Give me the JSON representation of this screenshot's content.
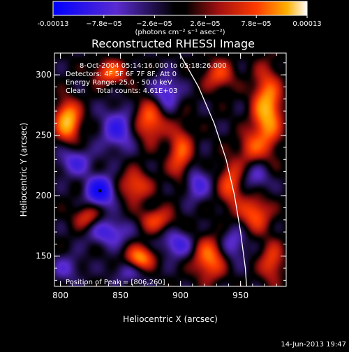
{
  "chart_data": {
    "type": "heatmap",
    "title": "Reconstructed RHESSI Image",
    "xlabel": "Heliocentric X (arcsec)",
    "ylabel": "Heliocentric Y (arcsec)",
    "xlim": [
      795,
      988
    ],
    "ylim": [
      125,
      318
    ],
    "xticks": [
      800,
      850,
      900,
      950
    ],
    "yticks": [
      150,
      200,
      250,
      300
    ],
    "colorbar": {
      "min": -0.00013,
      "max": 0.00013,
      "tick_labels": [
        "-0.00013",
        "−7.8e−05",
        "−2.6e−05",
        "2.6e−05",
        "7.8e−05",
        "0.00013"
      ],
      "units": "(photons cm⁻² s⁻¹ asec⁻²)",
      "colors": [
        "#1a1aff",
        "#6a2fd4",
        "#000000",
        "#7a1010",
        "#ff2a00",
        "#ffa000",
        "#ffffff"
      ]
    },
    "annotations": {
      "time_range": "8-Oct-2004 05:14:16.000 to 05:18:26.000",
      "detectors": "Detectors: 4F 5F 6F 7F 8F, Att 0",
      "energy": "Energy Range: 25.0 - 50.0 keV",
      "clean": "Clean     Total counts: 4.61E+03",
      "peak": "Position of Peak = [806,260]"
    },
    "peak_position": [
      806,
      260
    ],
    "limb_curve": [
      [
        899,
        318
      ],
      [
        915,
        290
      ],
      [
        928,
        260
      ],
      [
        938,
        230
      ],
      [
        945,
        200
      ],
      [
        950,
        170
      ],
      [
        954,
        140
      ],
      [
        955,
        125
      ]
    ],
    "sources": [
      {
        "x": 806,
        "y": 262,
        "sx": 7,
        "sy": 11,
        "a": 1.0
      },
      {
        "x": 972,
        "y": 270,
        "sx": 8,
        "sy": 22,
        "a": 0.95
      },
      {
        "x": 866,
        "y": 148,
        "sx": 8,
        "sy": 7,
        "a": 0.85
      },
      {
        "x": 924,
        "y": 148,
        "sx": 9,
        "sy": 12,
        "a": 0.7
      },
      {
        "x": 874,
        "y": 262,
        "sx": 9,
        "sy": 12,
        "a": 0.65
      },
      {
        "x": 842,
        "y": 302,
        "sx": 10,
        "sy": 7,
        "a": 0.6
      },
      {
        "x": 900,
        "y": 235,
        "sx": 7,
        "sy": 16,
        "a": 0.6
      },
      {
        "x": 942,
        "y": 210,
        "sx": 7,
        "sy": 14,
        "a": 0.55
      },
      {
        "x": 962,
        "y": 185,
        "sx": 9,
        "sy": 10,
        "a": 0.6
      },
      {
        "x": 862,
        "y": 208,
        "sx": 9,
        "sy": 9,
        "a": 0.55
      },
      {
        "x": 880,
        "y": 180,
        "sx": 10,
        "sy": 7,
        "a": 0.5
      },
      {
        "x": 822,
        "y": 182,
        "sx": 8,
        "sy": 7,
        "a": 0.45
      },
      {
        "x": 976,
        "y": 145,
        "sx": 7,
        "sy": 12,
        "a": 0.5
      },
      {
        "x": 932,
        "y": 300,
        "sx": 9,
        "sy": 9,
        "a": 0.5
      },
      {
        "x": 958,
        "y": 240,
        "sx": 7,
        "sy": 9,
        "a": 0.45
      },
      {
        "x": 833,
        "y": 204,
        "sx": 8,
        "sy": 8,
        "a": -0.95
      },
      {
        "x": 848,
        "y": 255,
        "sx": 10,
        "sy": 12,
        "a": -0.55
      },
      {
        "x": 888,
        "y": 285,
        "sx": 8,
        "sy": 10,
        "a": -0.5
      },
      {
        "x": 840,
        "y": 170,
        "sx": 12,
        "sy": 8,
        "a": -0.5
      },
      {
        "x": 897,
        "y": 160,
        "sx": 9,
        "sy": 8,
        "a": -0.5
      },
      {
        "x": 913,
        "y": 210,
        "sx": 8,
        "sy": 10,
        "a": -0.45
      },
      {
        "x": 812,
        "y": 228,
        "sx": 10,
        "sy": 8,
        "a": -0.45
      },
      {
        "x": 944,
        "y": 160,
        "sx": 8,
        "sy": 10,
        "a": -0.4
      },
      {
        "x": 964,
        "y": 215,
        "sx": 8,
        "sy": 8,
        "a": -0.35
      },
      {
        "x": 858,
        "y": 138,
        "sx": 10,
        "sy": 7,
        "a": -0.35
      },
      {
        "x": 805,
        "y": 140,
        "sx": 9,
        "sy": 8,
        "a": -0.3
      }
    ]
  },
  "footer": {
    "date": "14-Jun-2013 19:47"
  }
}
